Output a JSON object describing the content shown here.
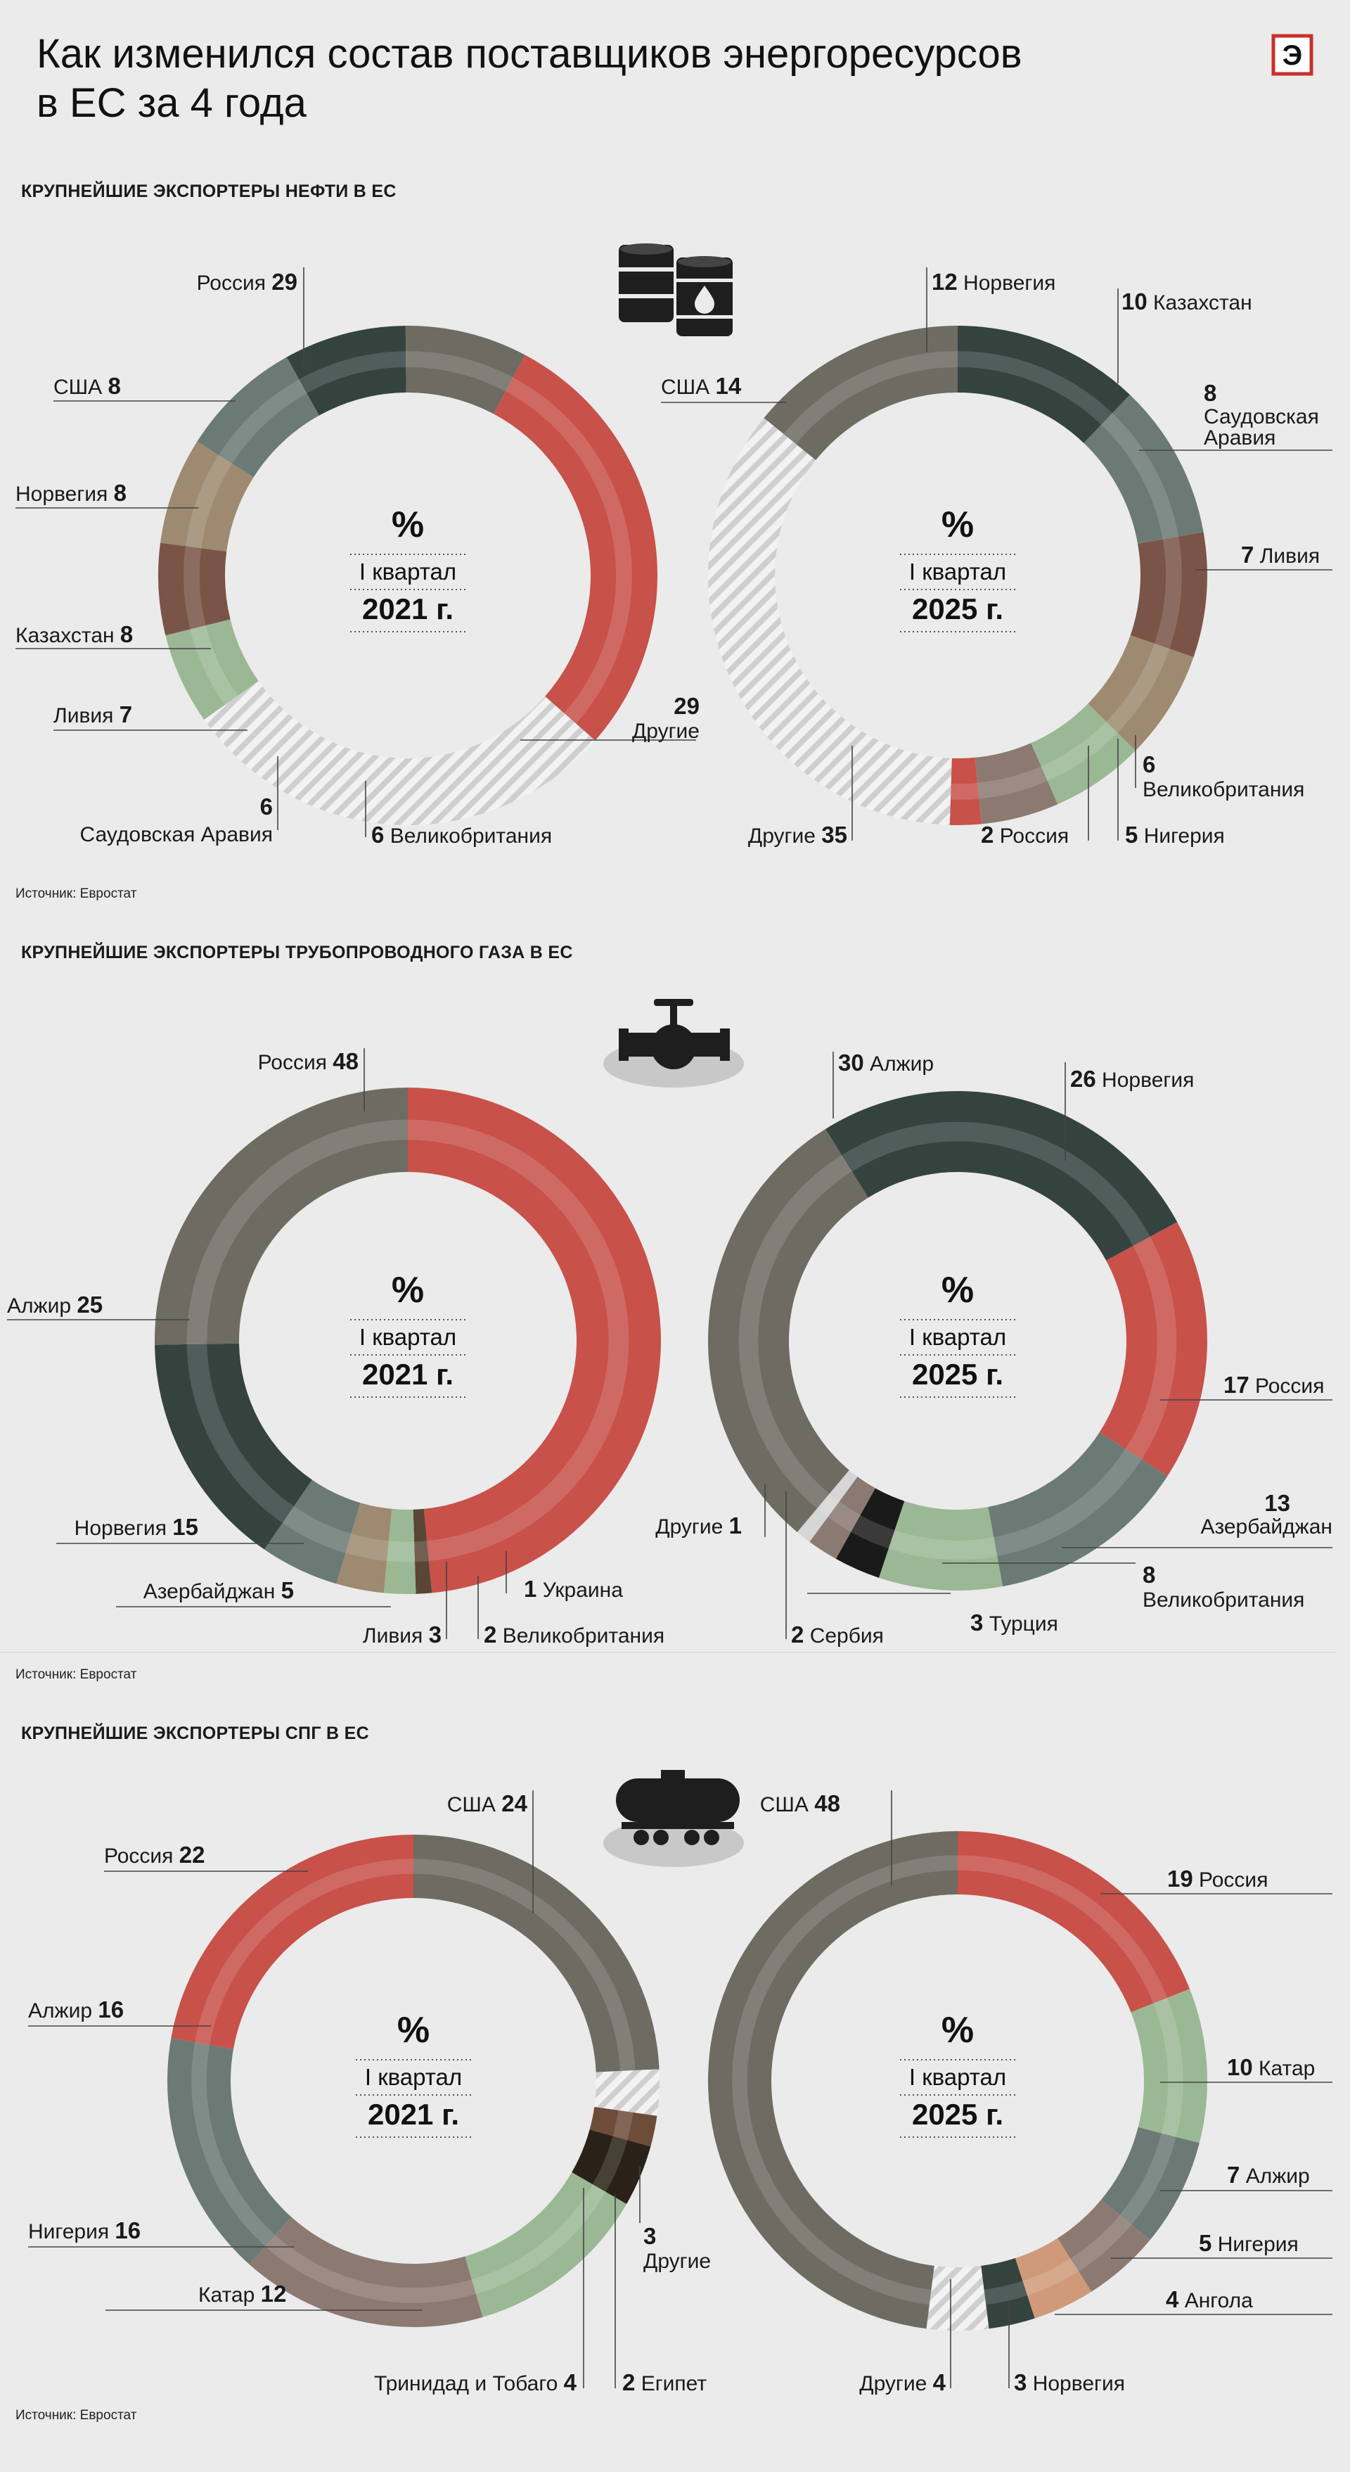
{
  "title": {
    "line1": "Как изменился состав поставщиков энергоресурсов",
    "line2": "в ЕС за 4 года"
  },
  "logo_letter": "Э",
  "sections": [
    {
      "title": "КРУПНЕЙШИЕ ЭКСПОРТЕРЫ НЕФТИ В ЕС",
      "source": "Источник: Евростат",
      "icon": "oil-barrels-icon"
    },
    {
      "title": "КРУПНЕЙШИЕ ЭКСПОРТЕРЫ ТРУБОПРОВОДНОГО ГАЗА В ЕС",
      "source": "Источник: Евростат",
      "icon": "pipeline-valve-icon"
    },
    {
      "title": "КРУПНЕЙШИЕ ЭКСПОРТЕРЫ СПГ В ЕС",
      "source": "Источник: Евростат",
      "icon": "tank-car-icon"
    }
  ],
  "colors": {
    "russia": "#c8514a",
    "usa": "#6e6b62",
    "norway": "#35433f",
    "kazakhstan": "#6c7a75",
    "libya": "#9e8a70",
    "saudi": "#7a5446",
    "uk": "#9bb894",
    "others": "#d6d6d6",
    "algeria": "#6e6b62",
    "azerbaijan": "#6c7a75",
    "ukraine": "#5a4636",
    "serbia": "#8a7a72",
    "turkey": "#1a1a1a",
    "nigeria": "#8c7a72",
    "qatar": "#9bb894",
    "trinidad": "#2a2218",
    "egypt": "#6e4c3a",
    "angola": "#d09a7a"
  },
  "chart_data": [
    {
      "type": "pie",
      "id": "oil-2021",
      "unit": "%",
      "center": {
        "pct": "%",
        "quarter": "I квартал",
        "year": "2021 г."
      },
      "slices": [
        {
          "label": "Россия",
          "value": 29,
          "color": "russia"
        },
        {
          "label": "Другие",
          "value": 29,
          "color": "others",
          "hatched": true
        },
        {
          "label": "Великобритания",
          "value": 6,
          "color": "uk"
        },
        {
          "label": "Саудовская Аравия",
          "value": 6,
          "color": "saudi"
        },
        {
          "label": "Ливия",
          "value": 7,
          "color": "libya"
        },
        {
          "label": "Казахстан",
          "value": 8,
          "color": "kazakhstan"
        },
        {
          "label": "Норвегия",
          "value": 8,
          "color": "norway"
        },
        {
          "label": "США",
          "value": 8,
          "color": "usa"
        }
      ]
    },
    {
      "type": "pie",
      "id": "oil-2025",
      "unit": "%",
      "center": {
        "pct": "%",
        "quarter": "I квартал",
        "year": "2025 г."
      },
      "slices": [
        {
          "label": "Норвегия",
          "value": 12,
          "color": "norway"
        },
        {
          "label": "Казахстан",
          "value": 10,
          "color": "kazakhstan"
        },
        {
          "label": "Саудовская Аравия",
          "value": 8,
          "color": "saudi"
        },
        {
          "label": "Ливия",
          "value": 7,
          "color": "libya"
        },
        {
          "label": "Великобритания",
          "value": 6,
          "color": "uk"
        },
        {
          "label": "Нигерия",
          "value": 5,
          "color": "nigeria"
        },
        {
          "label": "Россия",
          "value": 2,
          "color": "russia"
        },
        {
          "label": "Другие",
          "value": 35,
          "color": "others",
          "hatched": true
        },
        {
          "label": "США",
          "value": 14,
          "color": "usa"
        }
      ]
    },
    {
      "type": "pie",
      "id": "gas-2021",
      "unit": "%",
      "center": {
        "pct": "%",
        "quarter": "I квартал",
        "year": "2021 г."
      },
      "slices": [
        {
          "label": "Россия",
          "value": 48,
          "color": "russia"
        },
        {
          "label": "Украина",
          "value": 1,
          "color": "ukraine"
        },
        {
          "label": "Великобритания",
          "value": 2,
          "color": "uk"
        },
        {
          "label": "Ливия",
          "value": 3,
          "color": "libya"
        },
        {
          "label": "Азербайджан",
          "value": 5,
          "color": "azerbaijan"
        },
        {
          "label": "Норвегия",
          "value": 15,
          "color": "norway"
        },
        {
          "label": "Алжир",
          "value": 25,
          "color": "algeria"
        }
      ]
    },
    {
      "type": "pie",
      "id": "gas-2025",
      "unit": "%",
      "center": {
        "pct": "%",
        "quarter": "I квартал",
        "year": "2025 г."
      },
      "slices": [
        {
          "label": "Норвегия",
          "value": 26,
          "color": "norway"
        },
        {
          "label": "Россия",
          "value": 17,
          "color": "russia"
        },
        {
          "label": "Азербайджан",
          "value": 13,
          "color": "azerbaijan"
        },
        {
          "label": "Великобритания",
          "value": 8,
          "color": "uk"
        },
        {
          "label": "Турция",
          "value": 3,
          "color": "turkey"
        },
        {
          "label": "Сербия",
          "value": 2,
          "color": "serbia"
        },
        {
          "label": "Другие",
          "value": 1,
          "color": "others"
        },
        {
          "label": "Алжир",
          "value": 30,
          "color": "algeria"
        }
      ]
    },
    {
      "type": "pie",
      "id": "lng-2021",
      "unit": "%",
      "center": {
        "pct": "%",
        "quarter": "I квартал",
        "year": "2021 г."
      },
      "slices": [
        {
          "label": "США",
          "value": 24,
          "color": "usa"
        },
        {
          "label": "Другие",
          "value": 3,
          "color": "others",
          "hatched": true
        },
        {
          "label": "Египет",
          "value": 2,
          "color": "egypt"
        },
        {
          "label": "Тринидад и Тобаго",
          "value": 4,
          "color": "trinidad"
        },
        {
          "label": "Катар",
          "value": 12,
          "color": "qatar"
        },
        {
          "label": "Нигерия",
          "value": 16,
          "color": "nigeria"
        },
        {
          "label": "Алжир",
          "value": 16,
          "color": "kazakhstan"
        },
        {
          "label": "Россия",
          "value": 22,
          "color": "russia"
        }
      ]
    },
    {
      "type": "pie",
      "id": "lng-2025",
      "unit": "%",
      "center": {
        "pct": "%",
        "quarter": "I квартал",
        "year": "2025 г."
      },
      "slices": [
        {
          "label": "Россия",
          "value": 19,
          "color": "russia"
        },
        {
          "label": "Катар",
          "value": 10,
          "color": "qatar"
        },
        {
          "label": "Алжир",
          "value": 7,
          "color": "kazakhstan"
        },
        {
          "label": "Нигерия",
          "value": 5,
          "color": "nigeria"
        },
        {
          "label": "Ангола",
          "value": 4,
          "color": "angola"
        },
        {
          "label": "Норвегия",
          "value": 3,
          "color": "norway"
        },
        {
          "label": "Другие",
          "value": 4,
          "color": "others",
          "hatched": true
        },
        {
          "label": "США",
          "value": 48,
          "color": "usa"
        }
      ]
    }
  ]
}
